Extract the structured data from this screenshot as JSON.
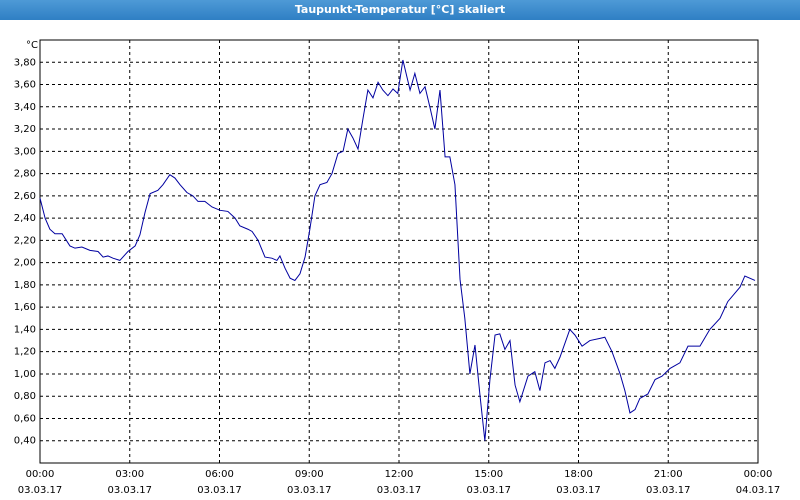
{
  "window_title": "Taupunkt-Temperatur [°C] skaliert",
  "chart_data": {
    "type": "line",
    "y_unit": "°C",
    "x": [
      0,
      0.17,
      0.33,
      0.5,
      0.74,
      1.0,
      1.17,
      1.4,
      1.67,
      1.94,
      2.11,
      2.27,
      2.44,
      2.67,
      2.94,
      3.18,
      3.34,
      3.51,
      3.68,
      3.94,
      4.11,
      4.34,
      4.51,
      4.68,
      4.91,
      5.11,
      5.28,
      5.51,
      5.75,
      6.02,
      6.28,
      6.52,
      6.68,
      6.95,
      7.09,
      7.29,
      7.52,
      7.75,
      7.92,
      8.02,
      8.19,
      8.36,
      8.52,
      8.69,
      8.86,
      9.02,
      9.19,
      9.36,
      9.59,
      9.76,
      9.96,
      10.13,
      10.29,
      10.46,
      10.63,
      10.8,
      10.96,
      11.13,
      11.3,
      11.46,
      11.63,
      11.8,
      11.96,
      12.13,
      12.37,
      12.53,
      12.7,
      12.87,
      13.03,
      13.2,
      13.37,
      13.54,
      13.7,
      13.87,
      14.04,
      14.2,
      14.37,
      14.54,
      14.71,
      14.87,
      15.04,
      15.21,
      15.37,
      15.54,
      15.71,
      15.88,
      16.04,
      16.31,
      16.54,
      16.71,
      16.88,
      17.05,
      17.21,
      17.38,
      17.71,
      17.88,
      18.12,
      18.38,
      18.72,
      18.88,
      19.12,
      19.39,
      19.55,
      19.72,
      19.89,
      20.05,
      20.32,
      20.56,
      20.79,
      21.06,
      21.39,
      21.66,
      22.06,
      22.39,
      22.73,
      22.99,
      23.4,
      23.56,
      23.9
    ],
    "series": [
      {
        "color": "#0000a0",
        "values": [
          2.58,
          2.4,
          2.3,
          2.26,
          2.26,
          2.15,
          2.13,
          2.14,
          2.11,
          2.1,
          2.05,
          2.06,
          2.04,
          2.02,
          2.1,
          2.15,
          2.25,
          2.45,
          2.62,
          2.65,
          2.7,
          2.79,
          2.76,
          2.7,
          2.63,
          2.6,
          2.55,
          2.55,
          2.5,
          2.47,
          2.46,
          2.4,
          2.33,
          2.3,
          2.28,
          2.2,
          2.05,
          2.04,
          2.02,
          2.06,
          1.95,
          1.86,
          1.84,
          1.9,
          2.05,
          2.3,
          2.6,
          2.7,
          2.72,
          2.8,
          2.98,
          3.0,
          3.2,
          3.12,
          3.02,
          3.3,
          3.55,
          3.48,
          3.62,
          3.55,
          3.5,
          3.56,
          3.52,
          3.82,
          3.55,
          3.7,
          3.52,
          3.58,
          3.4,
          3.2,
          3.55,
          2.95,
          2.95,
          2.7,
          1.85,
          1.5,
          1.0,
          1.26,
          0.8,
          0.4,
          0.95,
          1.35,
          1.36,
          1.22,
          1.3,
          0.9,
          0.75,
          0.98,
          1.02,
          0.85,
          1.1,
          1.12,
          1.05,
          1.15,
          1.4,
          1.35,
          1.25,
          1.3,
          1.32,
          1.33,
          1.2,
          1.0,
          0.85,
          0.65,
          0.68,
          0.78,
          0.82,
          0.95,
          0.98,
          1.05,
          1.1,
          1.25,
          1.25,
          1.4,
          1.5,
          1.65,
          1.78,
          1.88,
          1.84
        ]
      }
    ],
    "xlim": [
      0,
      24
    ],
    "xticks": [
      {
        "value": 0,
        "label": "00:00",
        "date": "03.03.17"
      },
      {
        "value": 3,
        "label": "03:00",
        "date": "03.03.17"
      },
      {
        "value": 6,
        "label": "06:00",
        "date": "03.03.17"
      },
      {
        "value": 9,
        "label": "09:00",
        "date": "03.03.17"
      },
      {
        "value": 12,
        "label": "12:00",
        "date": "03.03.17"
      },
      {
        "value": 15,
        "label": "15:00",
        "date": "03.03.17"
      },
      {
        "value": 18,
        "label": "18:00",
        "date": "03.03.17"
      },
      {
        "value": 21,
        "label": "21:00",
        "date": "03.03.17"
      },
      {
        "value": 24,
        "label": "00:00",
        "date": "04.03.17"
      }
    ],
    "ylim": [
      0.2,
      4.0
    ],
    "yticks": [
      {
        "value": 0.4,
        "label": "0,40"
      },
      {
        "value": 0.6,
        "label": "0,60"
      },
      {
        "value": 0.8,
        "label": "0,80"
      },
      {
        "value": 1.0,
        "label": "1,00"
      },
      {
        "value": 1.2,
        "label": "1,20"
      },
      {
        "value": 1.4,
        "label": "1,40"
      },
      {
        "value": 1.6,
        "label": "1,60"
      },
      {
        "value": 1.8,
        "label": "1,80"
      },
      {
        "value": 2.0,
        "label": "2,00"
      },
      {
        "value": 2.2,
        "label": "2,20"
      },
      {
        "value": 2.4,
        "label": "2,40"
      },
      {
        "value": 2.6,
        "label": "2,60"
      },
      {
        "value": 2.8,
        "label": "2,80"
      },
      {
        "value": 3.0,
        "label": "3,00"
      },
      {
        "value": 3.2,
        "label": "3,20"
      },
      {
        "value": 3.4,
        "label": "3,40"
      },
      {
        "value": 3.6,
        "label": "3,60"
      },
      {
        "value": 3.8,
        "label": "3,80"
      }
    ],
    "grid": true
  }
}
